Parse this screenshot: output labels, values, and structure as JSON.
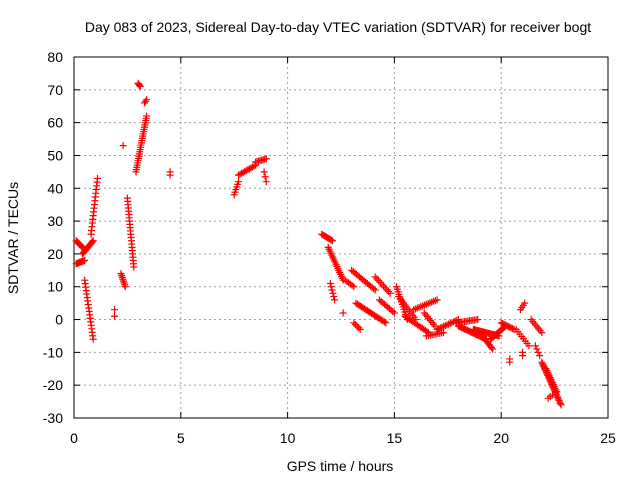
{
  "chart_data": {
    "type": "scatter",
    "title": "Day 083 of 2023, Sidereal Day-to-day VTEC variation (SDTVAR) for receiver bogt",
    "xlabel": "GPS time / hours",
    "ylabel": "SDTVAR / TECUs",
    "xlim": [
      0,
      25
    ],
    "ylim": [
      -30,
      80
    ],
    "xticks": [
      "0",
      "5",
      "10",
      "15",
      "20",
      "25"
    ],
    "yticks": [
      "-30",
      "-20",
      "-10",
      "0",
      "10",
      "20",
      "30",
      "40",
      "50",
      "60",
      "70",
      "80"
    ],
    "grid": true,
    "marker": "+",
    "color": "#ff0000",
    "segments": [
      {
        "x0": 0.1,
        "y0": 24,
        "x1": 0.4,
        "y1": 22,
        "n": 10
      },
      {
        "x0": 0.1,
        "y0": 17,
        "x1": 0.5,
        "y1": 18,
        "n": 10
      },
      {
        "x0": 0.4,
        "y0": 20,
        "x1": 0.9,
        "y1": 24,
        "n": 14
      },
      {
        "x0": 0.5,
        "y0": 12,
        "x1": 0.9,
        "y1": -6,
        "n": 18
      },
      {
        "x0": 0.8,
        "y0": 26,
        "x1": 1.1,
        "y1": 43,
        "n": 16
      },
      {
        "x0": 1.9,
        "y0": 1,
        "x1": 1.9,
        "y1": 3,
        "n": 2
      },
      {
        "x0": 2.2,
        "y0": 14,
        "x1": 2.4,
        "y1": 10,
        "n": 8
      },
      {
        "x0": 2.3,
        "y0": 53,
        "x1": 2.3,
        "y1": 53,
        "n": 1
      },
      {
        "x0": 2.5,
        "y0": 37,
        "x1": 2.8,
        "y1": 16,
        "n": 22
      },
      {
        "x0": 2.9,
        "y0": 45,
        "x1": 3.4,
        "y1": 62,
        "n": 26
      },
      {
        "x0": 3.0,
        "y0": 72,
        "x1": 3.1,
        "y1": 71,
        "n": 4
      },
      {
        "x0": 3.3,
        "y0": 66,
        "x1": 3.4,
        "y1": 67,
        "n": 3
      },
      {
        "x0": 4.5,
        "y0": 44,
        "x1": 4.5,
        "y1": 45,
        "n": 2
      },
      {
        "x0": 7.5,
        "y0": 38,
        "x1": 7.7,
        "y1": 42,
        "n": 6
      },
      {
        "x0": 7.7,
        "y0": 44,
        "x1": 8.5,
        "y1": 47,
        "n": 12
      },
      {
        "x0": 8.5,
        "y0": 48,
        "x1": 9.0,
        "y1": 49,
        "n": 8
      },
      {
        "x0": 8.9,
        "y0": 45,
        "x1": 9.0,
        "y1": 42,
        "n": 3
      },
      {
        "x0": 11.6,
        "y0": 26,
        "x1": 12.1,
        "y1": 24,
        "n": 10
      },
      {
        "x0": 11.9,
        "y0": 22,
        "x1": 12.6,
        "y1": 12,
        "n": 18
      },
      {
        "x0": 12.0,
        "y0": 11,
        "x1": 12.2,
        "y1": 6,
        "n": 6
      },
      {
        "x0": 12.6,
        "y0": 2,
        "x1": 12.6,
        "y1": 2,
        "n": 1
      },
      {
        "x0": 12.7,
        "y0": 12,
        "x1": 13.1,
        "y1": 10,
        "n": 6
      },
      {
        "x0": 13.2,
        "y0": 5,
        "x1": 14.6,
        "y1": -1,
        "n": 22
      },
      {
        "x0": 13.0,
        "y0": 15,
        "x1": 14.1,
        "y1": 9,
        "n": 16
      },
      {
        "x0": 13.1,
        "y0": -1,
        "x1": 13.4,
        "y1": -3,
        "n": 5
      },
      {
        "x0": 14.1,
        "y0": 13,
        "x1": 14.8,
        "y1": 8,
        "n": 10
      },
      {
        "x0": 14.3,
        "y0": 6,
        "x1": 15.0,
        "y1": 2,
        "n": 10
      },
      {
        "x0": 15.1,
        "y0": 10,
        "x1": 15.6,
        "y1": 0,
        "n": 14
      },
      {
        "x0": 15.2,
        "y0": 7,
        "x1": 16.0,
        "y1": 0,
        "n": 12
      },
      {
        "x0": 15.5,
        "y0": 1,
        "x1": 16.6,
        "y1": -4,
        "n": 16
      },
      {
        "x0": 15.9,
        "y0": 3,
        "x1": 17.0,
        "y1": 6,
        "n": 14
      },
      {
        "x0": 16.5,
        "y0": -5,
        "x1": 17.3,
        "y1": -4,
        "n": 10
      },
      {
        "x0": 16.4,
        "y0": 2,
        "x1": 16.9,
        "y1": -2,
        "n": 8
      },
      {
        "x0": 17.0,
        "y0": -3,
        "x1": 18.0,
        "y1": 0,
        "n": 14
      },
      {
        "x0": 17.9,
        "y0": -1,
        "x1": 18.9,
        "y1": 0,
        "n": 14
      },
      {
        "x0": 18.0,
        "y0": -2,
        "x1": 19.3,
        "y1": -6,
        "n": 24
      },
      {
        "x0": 18.7,
        "y0": -3,
        "x1": 19.9,
        "y1": -5,
        "n": 24
      },
      {
        "x0": 19.0,
        "y0": -4,
        "x1": 19.6,
        "y1": -9,
        "n": 12
      },
      {
        "x0": 19.5,
        "y0": -6,
        "x1": 20.2,
        "y1": -2,
        "n": 14
      },
      {
        "x0": 20.0,
        "y0": -1,
        "x1": 20.6,
        "y1": -3,
        "n": 10
      },
      {
        "x0": 20.4,
        "y0": -12,
        "x1": 20.4,
        "y1": -13,
        "n": 2
      },
      {
        "x0": 20.9,
        "y0": 3,
        "x1": 21.1,
        "y1": 5,
        "n": 4
      },
      {
        "x0": 20.7,
        "y0": -3,
        "x1": 21.3,
        "y1": -8,
        "n": 8
      },
      {
        "x0": 21.0,
        "y0": -11,
        "x1": 21.0,
        "y1": -10,
        "n": 2
      },
      {
        "x0": 21.4,
        "y0": 0,
        "x1": 21.9,
        "y1": -4,
        "n": 8
      },
      {
        "x0": 21.6,
        "y0": -8,
        "x1": 21.8,
        "y1": -11,
        "n": 4
      },
      {
        "x0": 21.9,
        "y0": -13,
        "x1": 22.8,
        "y1": -26,
        "n": 30
      },
      {
        "x0": 22.1,
        "y0": -15,
        "x1": 22.6,
        "y1": -22,
        "n": 14
      },
      {
        "x0": 22.2,
        "y0": -24,
        "x1": 22.4,
        "y1": -23,
        "n": 3
      }
    ]
  }
}
